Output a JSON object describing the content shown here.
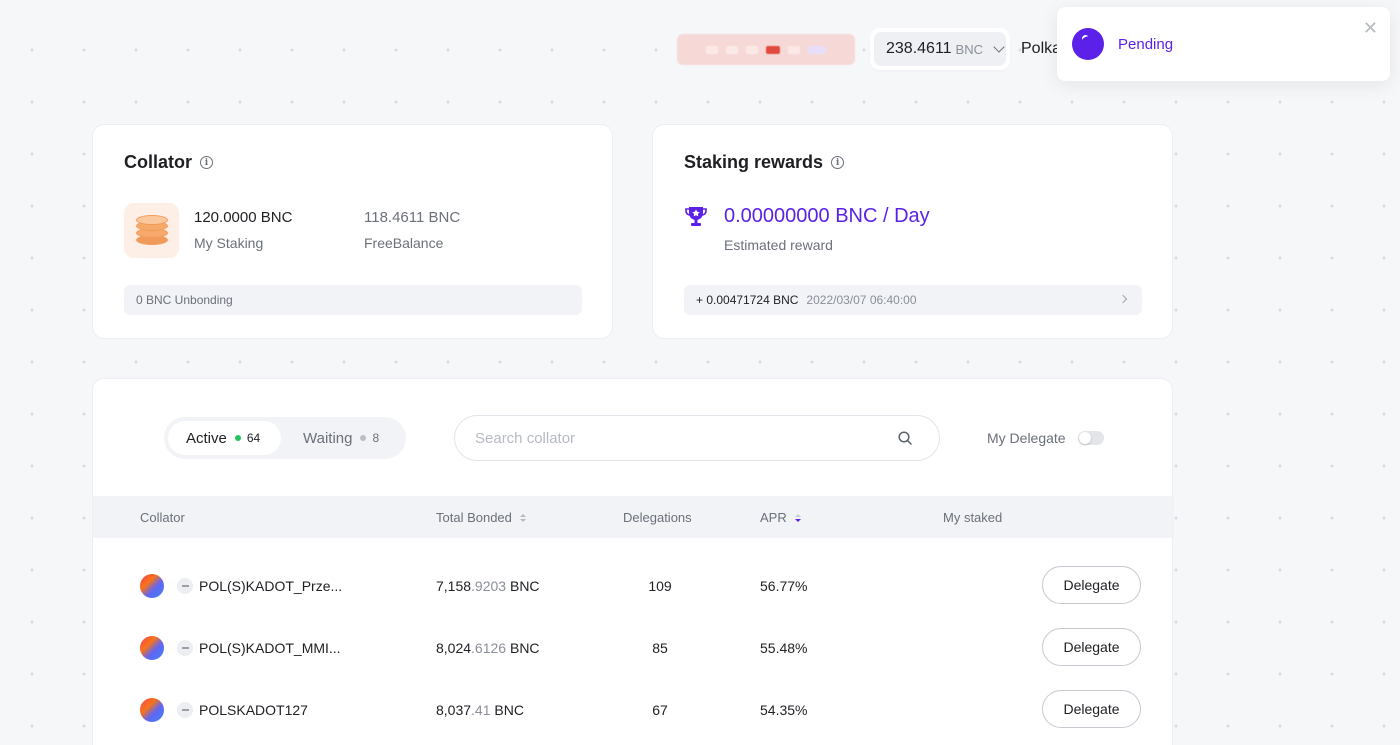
{
  "header": {
    "balance_value": "238.4611",
    "balance_unit": "BNC",
    "network_label": "Polka"
  },
  "toast": {
    "status_text": "Pending",
    "close_glyph": "✕",
    "status_color": "#5b21e8"
  },
  "collator_card": {
    "title": "Collator",
    "my_staking_value": "120.0000 BNC",
    "my_staking_label": "My Staking",
    "free_balance_value": "118.4611 BNC",
    "free_balance_label": "FreeBalance",
    "unbonding_text": "0 BNC Unbonding",
    "icon": "coin-stack-icon"
  },
  "rewards_card": {
    "title": "Staking rewards",
    "reward_value": "0.00000000 BNC / Day",
    "reward_label": "Estimated reward",
    "latest_amount": "+ 0.00471724 BNC",
    "latest_time": "2022/03/07 06:40:00",
    "icon": "trophy-icon",
    "accent": "#5b21e8"
  },
  "list": {
    "tabs": [
      {
        "label": "Active",
        "count": "64"
      },
      {
        "label": "Waiting",
        "count": "8"
      }
    ],
    "search_placeholder": "Search collator",
    "my_delegate_label": "My Delegate",
    "my_delegate_enabled": false,
    "columns": {
      "collator": "Collator",
      "total_bonded": "Total Bonded",
      "delegations": "Delegations",
      "apr": "APR",
      "my_staked": "My staked"
    },
    "rows": [
      {
        "name": "POL(S)KADOT_Prze...",
        "bonded_int": "7,158",
        "bonded_dec": ".9203",
        "bonded_unit": " BNC",
        "delegations": "109",
        "apr": "56.77%",
        "action": "Delegate"
      },
      {
        "name": "POL(S)KADOT_MMI...",
        "bonded_int": "8,024",
        "bonded_dec": ".6126",
        "bonded_unit": " BNC",
        "delegations": "85",
        "apr": "55.48%",
        "action": "Delegate"
      },
      {
        "name": "POLSKADOT127",
        "bonded_int": "8,037",
        "bonded_dec": ".41",
        "bonded_unit": " BNC",
        "delegations": "67",
        "apr": "54.35%",
        "action": "Delegate"
      }
    ]
  }
}
